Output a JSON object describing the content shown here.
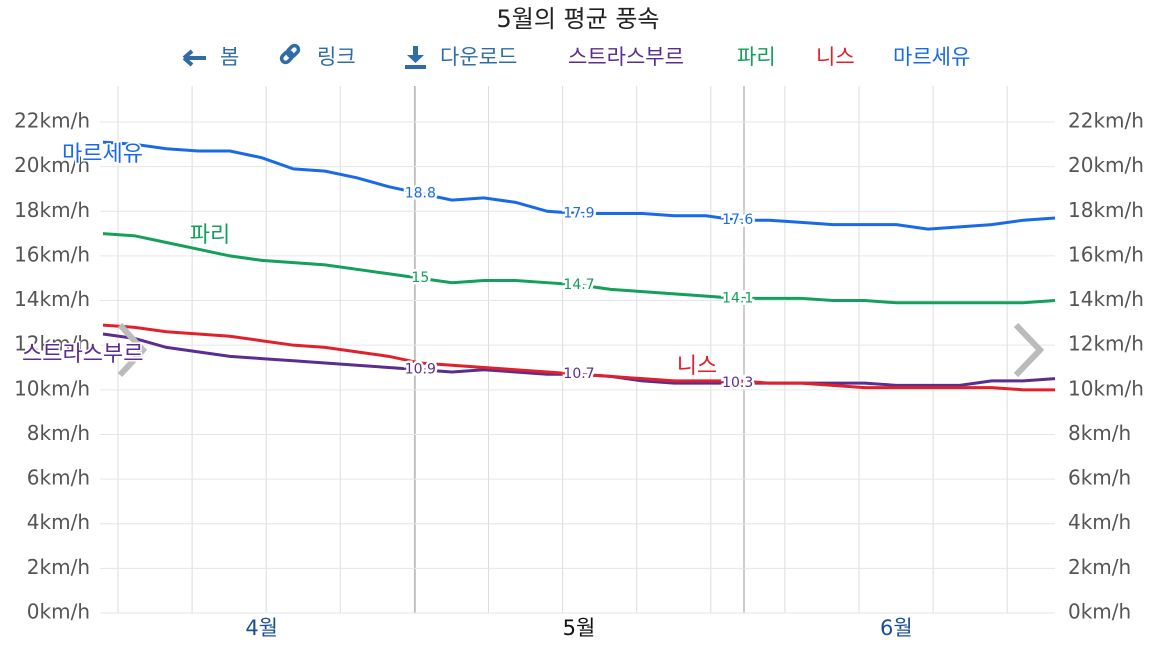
{
  "toolbar": [
    "봄",
    "링크",
    "다운로드"
  ],
  "chart_data": {
    "type": "line",
    "title": "5월의 평균 풍속",
    "categories": [
      null,
      null,
      null,
      null,
      null,
      "4월",
      null,
      null,
      null,
      null,
      null,
      null,
      null,
      null,
      null,
      "5월",
      null,
      null,
      null,
      null,
      null,
      null,
      null,
      null,
      null,
      "6월",
      null,
      null,
      null,
      null,
      null
    ],
    "selected_index": 15,
    "series": [
      {
        "name": "스트라스부르",
        "color": "#5b2d8e",
        "labeled_indices": [
          10,
          15,
          20
        ],
        "values": [
          12.5,
          12.3,
          11.9,
          11.7,
          11.5,
          11.4,
          11.3,
          11.2,
          11.1,
          11.0,
          10.9,
          10.8,
          10.9,
          10.8,
          10.7,
          10.7,
          10.6,
          10.4,
          10.3,
          10.3,
          10.3,
          10.3,
          10.3,
          10.3,
          10.3,
          10.2,
          10.2,
          10.2,
          10.4,
          10.4,
          10.5
        ]
      },
      {
        "name": "파리",
        "color": "#13a05a",
        "labeled_indices": [
          10,
          15,
          20
        ],
        "values": [
          17.0,
          16.9,
          16.6,
          16.3,
          16.0,
          15.8,
          15.7,
          15.6,
          15.4,
          15.2,
          15.0,
          14.8,
          14.9,
          14.9,
          14.8,
          14.7,
          14.5,
          14.4,
          14.3,
          14.2,
          14.1,
          14.1,
          14.1,
          14.0,
          14.0,
          13.9,
          13.9,
          13.9,
          13.9,
          13.9,
          14.0
        ]
      },
      {
        "name": "니스",
        "color": "#e0202a",
        "labeled_indices": [],
        "values": [
          12.9,
          12.8,
          12.6,
          12.5,
          12.4,
          12.2,
          12.0,
          11.9,
          11.7,
          11.5,
          11.2,
          11.1,
          11.0,
          10.9,
          10.8,
          10.7,
          10.6,
          10.5,
          10.4,
          10.4,
          10.4,
          10.3,
          10.3,
          10.2,
          10.1,
          10.1,
          10.1,
          10.1,
          10.1,
          10.0,
          10.0
        ]
      },
      {
        "name": "마르세유",
        "color": "#1a6ae8",
        "labeled_indices": [
          10,
          15,
          20
        ],
        "values": [
          21.1,
          21.0,
          20.8,
          20.7,
          20.7,
          20.4,
          19.9,
          19.8,
          19.5,
          19.1,
          18.8,
          18.5,
          18.6,
          18.4,
          18.0,
          17.9,
          17.9,
          17.9,
          17.8,
          17.8,
          17.6,
          17.6,
          17.5,
          17.4,
          17.4,
          17.4,
          17.2,
          17.3,
          17.4,
          17.6,
          17.7
        ]
      }
    ],
    "ylim": [
      0,
      22
    ],
    "yticks": [
      {
        "value": 0,
        "label": "0km/h"
      },
      {
        "value": 2,
        "label": "2km/h"
      },
      {
        "value": 4,
        "label": "4km/h"
      },
      {
        "value": 6,
        "label": "6km/h"
      },
      {
        "value": 8,
        "label": "8km/h"
      },
      {
        "value": 10,
        "label": "10km/h"
      },
      {
        "value": 12,
        "label": "12km/h"
      },
      {
        "value": 14,
        "label": "14km/h"
      },
      {
        "value": 16,
        "label": "16km/h"
      },
      {
        "value": 18,
        "label": "18km/h"
      },
      {
        "value": 20,
        "label": "20km/h"
      },
      {
        "value": 22,
        "label": "22km/h"
      }
    ],
    "y2lim": [
      0,
      22
    ],
    "y2ticks": [
      {
        "value": 0,
        "label": "0km/h"
      },
      {
        "value": 2,
        "label": "2km/h"
      },
      {
        "value": 4,
        "label": "4km/h"
      },
      {
        "value": 6,
        "label": "6km/h"
      },
      {
        "value": 8,
        "label": "8km/h"
      },
      {
        "value": 10,
        "label": "10km/h"
      },
      {
        "value": 12,
        "label": "12km/h"
      },
      {
        "value": 14,
        "label": "14km/h"
      },
      {
        "value": 16,
        "label": "16km/h"
      },
      {
        "value": 18,
        "label": "18km/h"
      },
      {
        "value": 20,
        "label": "20km/h"
      },
      {
        "value": 22,
        "label": "22km/h"
      }
    ],
    "grid": true
  }
}
